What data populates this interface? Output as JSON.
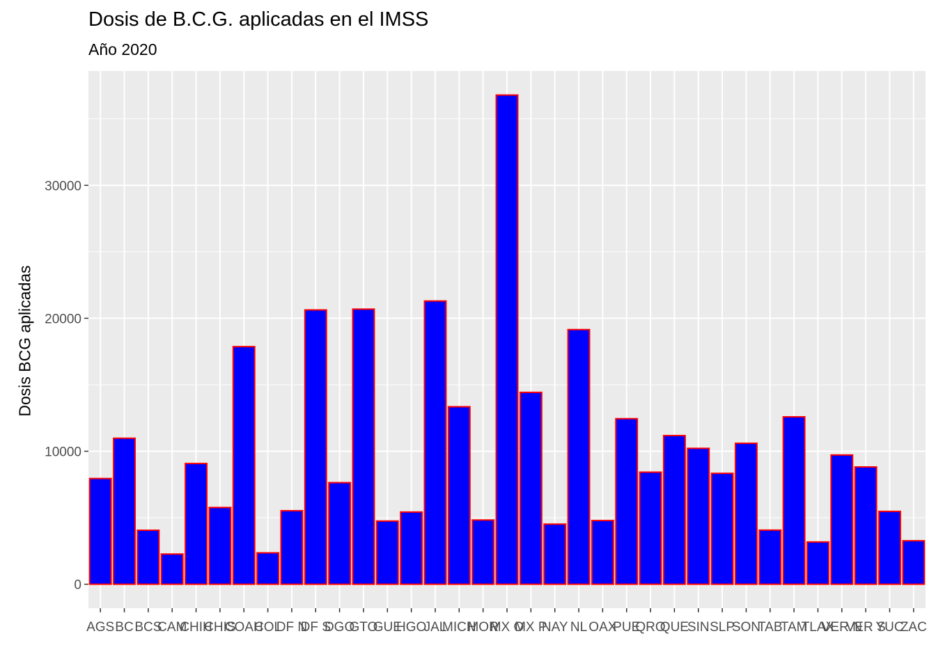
{
  "chart_data": {
    "type": "bar",
    "title": "Dosis de B.C.G. aplicadas en el IMSS",
    "subtitle": "Año 2020",
    "xlabel": "",
    "ylabel": "Dosis BCG aplicadas",
    "categories": [
      "AGS",
      "BC",
      "BCS",
      "CAM",
      "CHIH",
      "CHIS",
      "COAH",
      "COL",
      "DF N",
      "DF S",
      "DGO",
      "GTO",
      "GUE",
      "HGO",
      "JAL",
      "MICH",
      "MOR",
      "MX O",
      "MX P",
      "NAY",
      "NL",
      "OAX",
      "PUE",
      "QRO",
      "QUE",
      "SIN",
      "SLP",
      "SON",
      "TAB",
      "TAM",
      "TLAX",
      "VER N",
      "VER S",
      "YUC",
      "ZAC"
    ],
    "values": [
      7950,
      10980,
      4060,
      2270,
      9080,
      5770,
      17870,
      2360,
      5530,
      20630,
      7640,
      20690,
      4750,
      5430,
      21300,
      13350,
      4830,
      36790,
      14430,
      4520,
      19150,
      4790,
      12450,
      8430,
      11180,
      10220,
      8340,
      10600,
      4070,
      12590,
      3180,
      9720,
      8820,
      5480,
      3270
    ],
    "yticks": [
      0,
      10000,
      20000,
      30000
    ],
    "ylim": [
      -1800,
      38600
    ],
    "grid": true,
    "colors": {
      "bar_fill": "#0000FF",
      "bar_stroke": "#FF0000",
      "panel": "#EBEBEB",
      "grid": "#FFFFFF"
    }
  }
}
